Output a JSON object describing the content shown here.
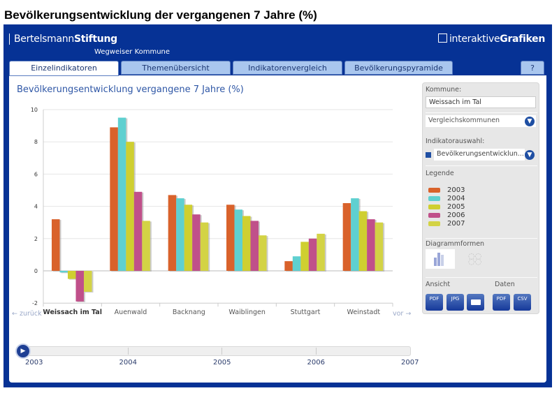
{
  "page_title": "Bevölkerungsentwicklung der vergangenen 7 Jahre (%)",
  "header": {
    "brand_light": "Bertelsmann",
    "brand_bold": "Stiftung",
    "subtitle": "Wegweiser Kommune",
    "product_light": "interaktive",
    "product_bold": "Grafiken",
    "help": "?"
  },
  "tabs": [
    {
      "label": "Einzelindikatoren",
      "active": true
    },
    {
      "label": "Themenübersicht"
    },
    {
      "label": "Indikatorenvergleich"
    },
    {
      "label": "Bevölkerungspyramide"
    }
  ],
  "nav": {
    "back": "← zurück",
    "forward": "vor →"
  },
  "sidebar": {
    "kommune_label": "Kommune:",
    "kommune_value": "Weissach im Tal",
    "vergleich": "Vergleichskommunen",
    "indikator_label": "Indikatorauswahl:",
    "indikator_value": "Bevölkerungsentwicklun...",
    "legende_label": "Legende",
    "diagramm_label": "Diagrammformen",
    "ansicht_label": "Ansicht",
    "daten_label": "Daten",
    "ansicht_buttons": [
      "PDF",
      "JPG",
      "Drucken"
    ],
    "daten_buttons": [
      "PDF",
      "CSV"
    ]
  },
  "timeline": {
    "years": [
      "2003",
      "2004",
      "2005",
      "2006",
      "2007"
    ],
    "current": "2003"
  },
  "chart_data": {
    "type": "bar",
    "title": "Bevölkerungsentwicklung vergangene 7 Jahre (%)",
    "categories": [
      "Weissach im Tal",
      "Auenwald",
      "Backnang",
      "Waiblingen",
      "Stuttgart",
      "Weinstadt"
    ],
    "highlighted_category": "Weissach im Tal",
    "ylim": [
      -2,
      10
    ],
    "yticks": [
      -2,
      0,
      2,
      4,
      6,
      8,
      10
    ],
    "grid": true,
    "legend_position": "right",
    "series": [
      {
        "name": "2003",
        "color": "#d9622b",
        "values": [
          3.2,
          8.9,
          4.7,
          4.1,
          0.6,
          4.2
        ]
      },
      {
        "name": "2004",
        "color": "#5fd0d0",
        "values": [
          -0.1,
          9.5,
          4.5,
          3.8,
          0.9,
          4.5
        ]
      },
      {
        "name": "2005",
        "color": "#cfcf30",
        "values": [
          -0.5,
          8.0,
          4.1,
          3.4,
          1.8,
          3.7
        ]
      },
      {
        "name": "2006",
        "color": "#c0508a",
        "values": [
          -1.9,
          4.9,
          3.5,
          3.1,
          2.0,
          3.2
        ]
      },
      {
        "name": "2007",
        "color": "#d3d345",
        "values": [
          -1.3,
          3.1,
          3.0,
          2.2,
          2.3,
          3.0
        ]
      }
    ]
  }
}
